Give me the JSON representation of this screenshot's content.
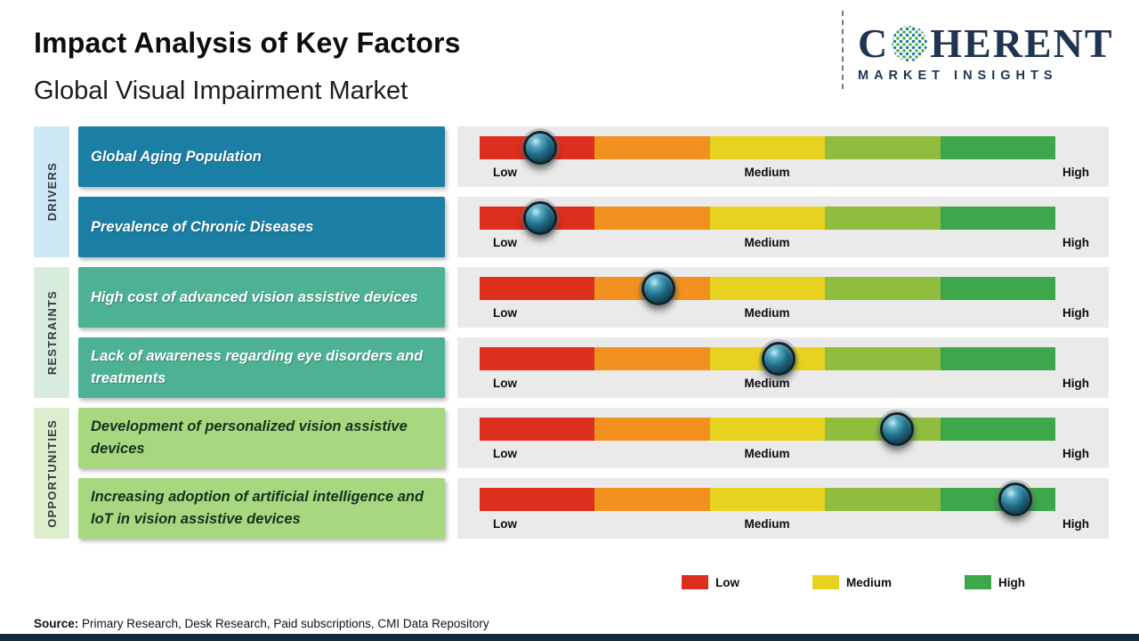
{
  "header": {
    "title": "Impact Analysis of Key Factors",
    "subtitle": "Global Visual Impairment Market"
  },
  "logo": {
    "brand_prefix": "C",
    "brand_suffix": "HERENT",
    "globe_icon": "dotted-globe-icon",
    "tagline": "MARKET INSIGHTS",
    "brand_color": "#1f3450"
  },
  "colors": {
    "drivers_box": "#1b7ea4",
    "restraints_box": "#4db293",
    "opportunities_box": "#a7d880",
    "drivers_strip": "#cde8f4",
    "restraints_strip": "#d7ecdc",
    "opportunities_strip": "#ddeecf",
    "bar_panel": "#eaeaea",
    "segment_red": "#dd2f1e",
    "segment_orange": "#f29120",
    "segment_yellow": "#e7d31f",
    "segment_yellowgreen": "#90bd3e",
    "segment_green": "#3fa74b",
    "knob": "#1d6478",
    "footer_bar": "#132b3a"
  },
  "scale": {
    "low": "Low",
    "medium": "Medium",
    "high": "High"
  },
  "groups": [
    {
      "label": "DRIVERS"
    },
    {
      "label": "RESTRAINTS"
    },
    {
      "label": "OPPORTUNITIES"
    }
  ],
  "rows": [
    {
      "group": "Drivers",
      "label": "Global Aging Population",
      "impact_pct": 10.5,
      "impact_level": "Low"
    },
    {
      "group": "Drivers",
      "label": "Prevalence of Chronic Diseases",
      "impact_pct": 10.5,
      "impact_level": "Low"
    },
    {
      "group": "Restraints",
      "label": "High cost of advanced vision assistive devices",
      "impact_pct": 31,
      "impact_level": "Low-Medium"
    },
    {
      "group": "Restraints",
      "label": "Lack of awareness regarding eye disorders and treatments",
      "impact_pct": 52,
      "impact_level": "Medium"
    },
    {
      "group": "Opportunities",
      "label": "Development of personalized vision assistive devices",
      "impact_pct": 72.5,
      "impact_level": "Medium-High"
    },
    {
      "group": "Opportunities",
      "label": "Increasing adoption of artificial intelligence and IoT in vision assistive devices",
      "impact_pct": 93,
      "impact_level": "High"
    }
  ],
  "legend": {
    "items": [
      {
        "label": "Low",
        "color": "#dd2f1e"
      },
      {
        "label": "Medium",
        "color": "#e7d31f"
      },
      {
        "label": "High",
        "color": "#3fa74b"
      }
    ]
  },
  "source": {
    "label": "Source:",
    "text": " Primary Research, Desk Research, Paid subscriptions, CMI Data Repository"
  },
  "chart_data": {
    "type": "scatter",
    "title": "Impact Analysis of Key Factors",
    "subtitle": "Global Visual Impairment Market",
    "xlabel": "Impact level",
    "x_scale_labels": [
      "Low",
      "Medium",
      "High"
    ],
    "x_range_pct": [
      0,
      100
    ],
    "legend": [
      "Low",
      "Medium",
      "High"
    ],
    "legend_position": "bottom",
    "series": [
      {
        "name": "Drivers",
        "points": [
          {
            "factor": "Global Aging Population",
            "impact_pct": 10.5,
            "impact_level": "Low"
          },
          {
            "factor": "Prevalence of Chronic Diseases",
            "impact_pct": 10.5,
            "impact_level": "Low"
          }
        ]
      },
      {
        "name": "Restraints",
        "points": [
          {
            "factor": "High cost of advanced vision assistive devices",
            "impact_pct": 31,
            "impact_level": "Low-Medium"
          },
          {
            "factor": "Lack of awareness regarding eye disorders and treatments",
            "impact_pct": 52,
            "impact_level": "Medium"
          }
        ]
      },
      {
        "name": "Opportunities",
        "points": [
          {
            "factor": "Development of personalized vision assistive devices",
            "impact_pct": 72.5,
            "impact_level": "Medium-High"
          },
          {
            "factor": "Increasing adoption of artificial intelligence and IoT in vision assistive devices",
            "impact_pct": 93,
            "impact_level": "High"
          }
        ]
      }
    ]
  }
}
